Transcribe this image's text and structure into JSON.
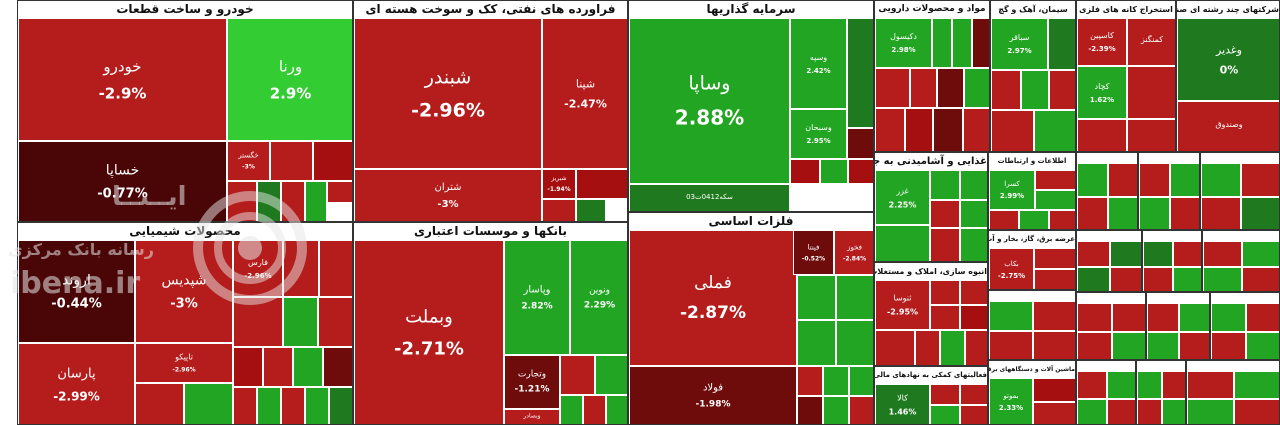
{
  "watermark": {
    "line1": "ایــنــا",
    "line2": "رسانه بانک مرکزی",
    "line3": "ibena.ir"
  },
  "colors": {
    "strong_green": "#1f7a1f",
    "green": "#22a522",
    "light_green": "#33cc33",
    "light_red": "#b51c1c",
    "red": "#a50f0f",
    "dark_red": "#6e0c0c",
    "darkest_red": "#4a0606",
    "grey": "#dddddd"
  },
  "chart_data": {
    "type": "treemap",
    "title": "",
    "sectors": [
      {
        "name": "خودرو و ساخت قطعات",
        "tiles": [
          {
            "name": "خودرو",
            "change": "-2.9%"
          },
          {
            "name": "ورنا",
            "change": "2.9%"
          },
          {
            "name": "خساپا",
            "change": "-0.77%"
          },
          {
            "name": "خگستر",
            "change": "-3%"
          }
        ]
      },
      {
        "name": "فراورده های نفتی، کک و سوخت هسته ای",
        "tiles": [
          {
            "name": "شبندر",
            "change": "-2.96%"
          },
          {
            "name": "شپنا",
            "change": "-2.47%"
          },
          {
            "name": "شتران",
            "change": "-3%"
          },
          {
            "name": "شبریز",
            "change": "-1.94%"
          }
        ]
      },
      {
        "name": "سرمایه گذاریها",
        "tiles": [
          {
            "name": "وساپا",
            "change": "2.88%"
          },
          {
            "name": "وسپه",
            "change": "2.42%"
          },
          {
            "name": "وسبحان",
            "change": "2.95%"
          },
          {
            "name": "سکه0412ت03",
            "change": ""
          }
        ]
      },
      {
        "name": "مواد و محصولات دارویی",
        "tiles": [
          {
            "name": "دکیسول",
            "change": "2.98%"
          }
        ]
      },
      {
        "name": "سیمان، آهک و گچ",
        "tiles": [
          {
            "name": "سباقر",
            "change": "2.97%"
          }
        ]
      },
      {
        "name": "استخراج کانه های فلزی",
        "tiles": [
          {
            "name": "کاسپین",
            "change": "-2.39%"
          },
          {
            "name": "کچاد",
            "change": "1.62%"
          },
          {
            "name": "کمنگنز",
            "change": ""
          }
        ]
      },
      {
        "name": "شرکتهای چند رشته ای صنعتی",
        "tiles": [
          {
            "name": "وغدیر",
            "change": "0%"
          },
          {
            "name": "وصندوق",
            "change": ""
          }
        ]
      },
      {
        "name": "محصولات شیمیایی",
        "tiles": [
          {
            "name": "اروند",
            "change": "-0.44%"
          },
          {
            "name": "شپدیس",
            "change": "-3%"
          },
          {
            "name": "پارسان",
            "change": "-2.99%"
          },
          {
            "name": "تاپیکو",
            "change": "-2.96%"
          },
          {
            "name": "فارس",
            "change": "-2.96%"
          }
        ]
      },
      {
        "name": "بانکها و موسسات اعتباری",
        "tiles": [
          {
            "name": "وبملت",
            "change": "-2.71%"
          },
          {
            "name": "وپاسار",
            "change": "2.82%"
          },
          {
            "name": "ونوین",
            "change": "2.29%"
          },
          {
            "name": "وتجارت",
            "change": "-1.21%"
          },
          {
            "name": "وبصادر",
            "change": ""
          }
        ]
      },
      {
        "name": "فلزات اساسی",
        "tiles": [
          {
            "name": "فملی",
            "change": "-2.87%"
          },
          {
            "name": "فولاد",
            "change": "-1.98%"
          },
          {
            "name": "فخوز",
            "change": "-2.84%"
          },
          {
            "name": "فپنتا",
            "change": "-0.52%"
          }
        ]
      },
      {
        "name": "غذایی و آشامیدنی به جز قند و شکر",
        "tiles": [
          {
            "name": "غزر",
            "change": "2.25%"
          }
        ]
      },
      {
        "name": "انبوه سازی، املاک و مستغلات",
        "tiles": [
          {
            "name": "ثنوسا",
            "change": "-2.95%"
          }
        ]
      },
      {
        "name": "عرضه برق، گاز، بخار و آب گرم",
        "tiles": [
          {
            "name": "بکاب",
            "change": "-2.75%"
          }
        ]
      },
      {
        "name": "فعالیتهای کمکی به نهادهای مالی واسط",
        "tiles": [
          {
            "name": "کالا",
            "change": "1.46%"
          }
        ]
      },
      {
        "name": "ماشین آلات و دستگاههای برقی",
        "tiles": [
          {
            "name": "بموتو",
            "change": "2.33%"
          }
        ]
      },
      {
        "name": "اطلاعات و ارتباطات",
        "tiles": [
          {
            "name": "کسرا",
            "change": "2.99%"
          }
        ]
      }
    ]
  }
}
